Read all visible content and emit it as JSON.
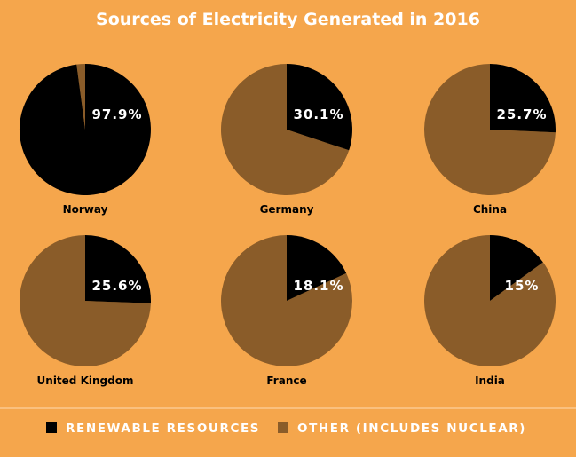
{
  "chart_data": {
    "type": "pie",
    "title": "Sources of Electricity Generated in 2016",
    "categories": [
      "Renewable Resources",
      "Other (Includes Nuclear)"
    ],
    "series": [
      {
        "name": "Norway",
        "values": [
          97.9,
          2.1
        ],
        "label": "97.9%"
      },
      {
        "name": "Germany",
        "values": [
          30.1,
          69.9
        ],
        "label": "30.1%"
      },
      {
        "name": "China",
        "values": [
          25.7,
          74.3
        ],
        "label": "25.7%"
      },
      {
        "name": "United Kingdom",
        "values": [
          25.6,
          74.4
        ],
        "label": "25.6%"
      },
      {
        "name": "France",
        "values": [
          18.1,
          81.9
        ],
        "label": "18.1%"
      },
      {
        "name": "India",
        "values": [
          15,
          85
        ],
        "label": "15%"
      }
    ],
    "legend": {
      "position": "bottom",
      "entries": [
        {
          "label": "RENEWABLE RESOURCES",
          "color": "#000000"
        },
        {
          "label": "OTHER (INCLUDES NUCLEAR)",
          "color": "#8A5C29"
        }
      ]
    },
    "colors": {
      "background": "#F5A64C",
      "renewable": "#000000",
      "other": "#8A5C29",
      "text_light": "#FFFFFF",
      "text_dark": "#000000",
      "divider": "#FBC98E"
    }
  }
}
